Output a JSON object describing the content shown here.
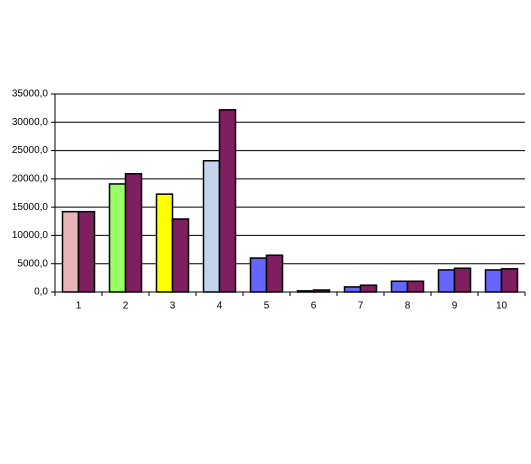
{
  "chart_data": {
    "type": "bar",
    "categories": [
      "1",
      "2",
      "3",
      "4",
      "5",
      "6",
      "7",
      "8",
      "9",
      "10"
    ],
    "series": [
      {
        "colors": [
          "#e8b4b8",
          "#99ff66",
          "#ffff00",
          "#c4d4ec",
          "#6666ff",
          "#6666ff",
          "#6666ff",
          "#6666ff",
          "#6666ff",
          "#6666ff"
        ],
        "values": [
          14200,
          19100,
          17300,
          23200,
          6000,
          200,
          900,
          1900,
          3900,
          3900
        ]
      },
      {
        "color": "#7f1f5f",
        "values": [
          14200,
          20900,
          12900,
          32200,
          6500,
          350,
          1200,
          1900,
          4200,
          4100
        ]
      }
    ],
    "ylim": [
      0,
      35000
    ],
    "yticks": [
      {
        "value": 0,
        "label": "0,0"
      },
      {
        "value": 5000,
        "label": "5000,0"
      },
      {
        "value": 10000,
        "label": "10000,0"
      },
      {
        "value": 15000,
        "label": "15000,0"
      },
      {
        "value": 20000,
        "label": "20000,0"
      },
      {
        "value": 25000,
        "label": "25000,0"
      },
      {
        "value": 30000,
        "label": "30000,0"
      },
      {
        "value": 35000,
        "label": "35000,0"
      }
    ],
    "grid": true
  }
}
